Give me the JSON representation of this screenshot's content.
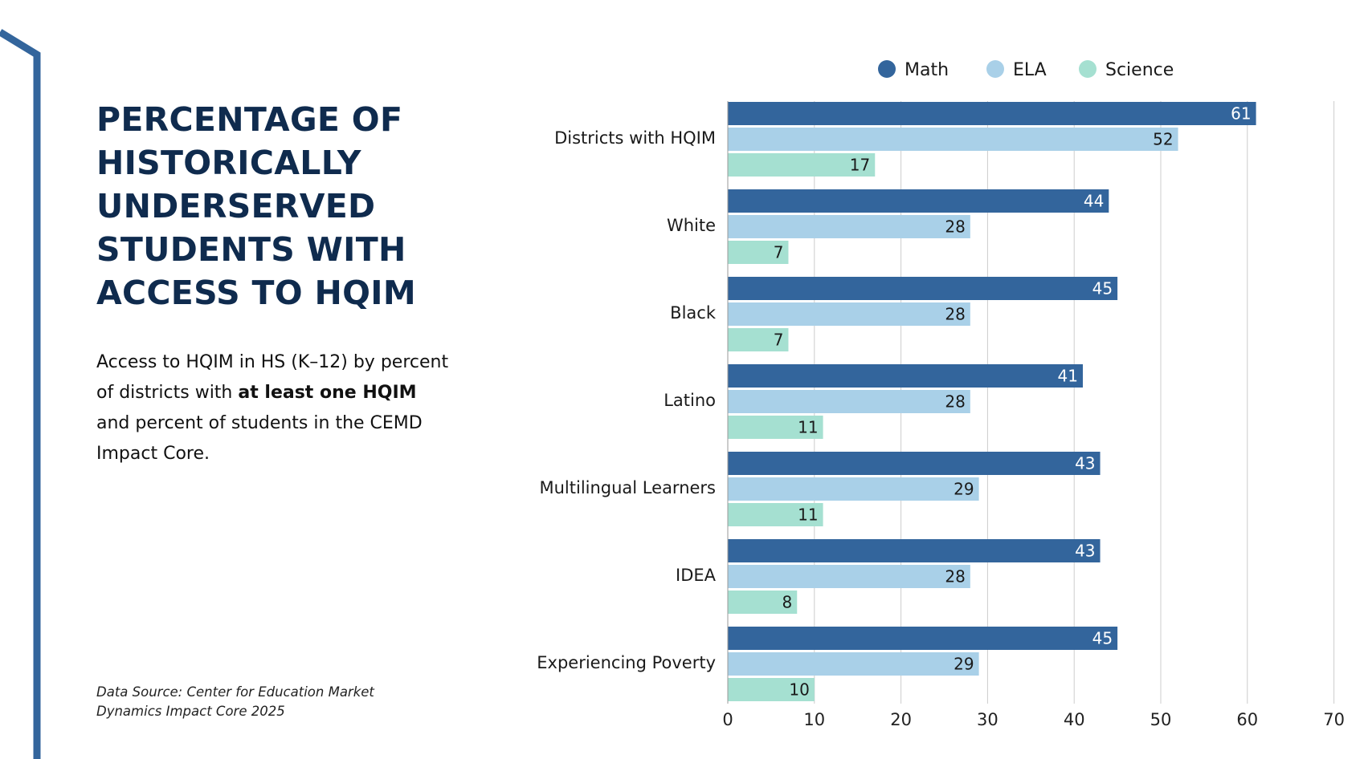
{
  "title_lines": [
    "PERCENTAGE OF",
    "HISTORICALLY",
    "UNDERSERVED",
    "STUDENTS WITH",
    "ACCESS TO HQIM"
  ],
  "subtitle": {
    "part1": "Access to HQIM in HS (K–12) by percent of districts with ",
    "bold1": "at least one HQIM",
    "part2": " and percent of students in the CEMD Impact Core."
  },
  "source_lines": [
    "Data Source: Center for Education Market",
    "Dynamics Impact Core 2025"
  ],
  "colors": {
    "accent": "#33659c",
    "math": "#33659c",
    "ela": "#a9d0e8",
    "science": "#a5e0d1",
    "title": "#0f2b4e",
    "grid": "#cccccc"
  },
  "chart_data": {
    "type": "bar",
    "orientation": "horizontal",
    "categories": [
      "Districts with HQIM",
      "White",
      "Black",
      "Latino",
      "Multilingual Learners",
      "IDEA",
      "Experiencing Poverty"
    ],
    "series": [
      {
        "name": "Math",
        "values": [
          61,
          44,
          45,
          41,
          43,
          43,
          45
        ]
      },
      {
        "name": "ELA",
        "values": [
          52,
          28,
          28,
          28,
          29,
          28,
          29
        ]
      },
      {
        "name": "Science",
        "values": [
          17,
          7,
          7,
          11,
          11,
          8,
          10
        ]
      }
    ],
    "xlim": [
      0,
      70
    ],
    "xticks": [
      0,
      10,
      20,
      30,
      40,
      50,
      60,
      70
    ],
    "grid": true,
    "legend": "top-center",
    "data_labels": true
  }
}
